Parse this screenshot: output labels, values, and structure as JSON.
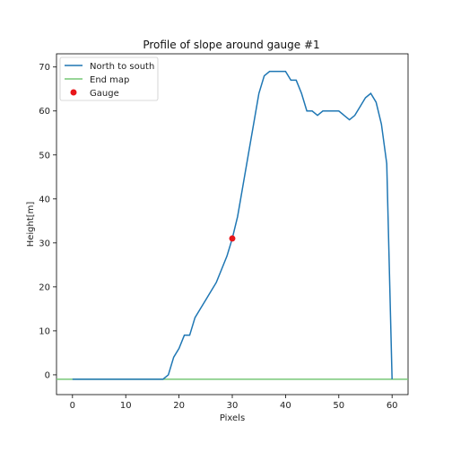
{
  "chart_data": {
    "type": "line",
    "title": "Profile of slope around gauge #1",
    "xlabel": "Pixels",
    "ylabel": "Height[m]",
    "xlim": [
      -3,
      63
    ],
    "ylim": [
      -4.5,
      73
    ],
    "xticks": [
      0,
      10,
      20,
      30,
      40,
      50,
      60
    ],
    "yticks": [
      0,
      10,
      20,
      30,
      40,
      50,
      60,
      70
    ],
    "grid": false,
    "legend_position": "top-left",
    "series": [
      {
        "name": "North to south",
        "color": "#1f77b4",
        "x": [
          0,
          1,
          2,
          3,
          4,
          5,
          6,
          7,
          8,
          9,
          10,
          11,
          12,
          13,
          14,
          15,
          16,
          17,
          18,
          19,
          20,
          21,
          22,
          23,
          24,
          25,
          26,
          27,
          28,
          29,
          30,
          31,
          32,
          33,
          34,
          35,
          36,
          37,
          38,
          39,
          40,
          41,
          42,
          43,
          44,
          45,
          46,
          47,
          48,
          49,
          50,
          51,
          52,
          53,
          54,
          55,
          56,
          57,
          58,
          59,
          60
        ],
        "y": [
          -1,
          -1,
          -1,
          -1,
          -1,
          -1,
          -1,
          -1,
          -1,
          -1,
          -1,
          -1,
          -1,
          -1,
          -1,
          -1,
          -1,
          -1,
          0,
          4,
          6,
          9,
          9,
          13,
          15,
          17,
          19,
          21,
          24,
          27,
          31,
          36,
          43,
          50,
          57,
          64,
          68,
          69,
          69,
          69,
          69,
          67,
          67,
          64,
          60,
          60,
          59,
          60,
          60,
          60,
          60,
          59,
          58,
          59,
          61,
          63,
          64,
          62,
          57,
          48,
          -1
        ]
      },
      {
        "name": "End map",
        "color": "#77c777",
        "x": [
          -3,
          63
        ],
        "y": [
          -1,
          -1
        ]
      }
    ],
    "points": [
      {
        "name": "Gauge",
        "color": "#e8161b",
        "x": 30,
        "y": 31
      }
    ]
  }
}
